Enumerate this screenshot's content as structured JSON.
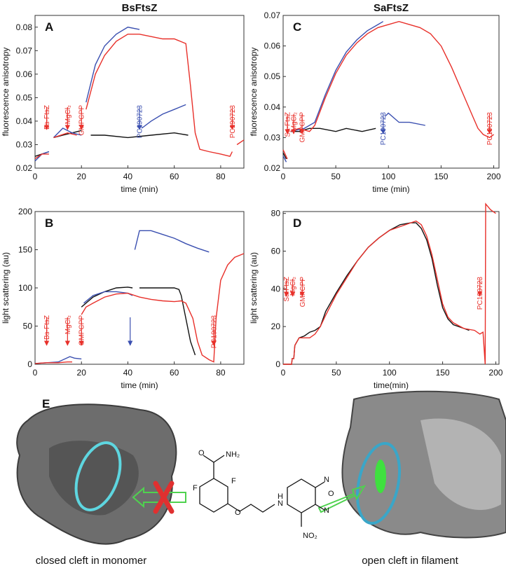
{
  "chart_data": [
    {
      "type": "line",
      "label": "A",
      "title": "BsFtsZ",
      "xlabel": "time (min)",
      "ylabel": "fluorescence anisotropy",
      "xlim": [
        0,
        90
      ],
      "xticks": [
        0,
        20,
        40,
        60,
        80
      ],
      "ylim": [
        0.02,
        0.085
      ],
      "yticks": [
        0.02,
        0.03,
        0.04,
        0.05,
        0.06,
        0.07,
        0.08
      ],
      "series": [
        {
          "color": "#111111",
          "x": [
            0,
            6,
            7,
            8,
            12,
            16,
            20,
            22,
            24,
            30,
            40,
            50,
            60,
            66
          ],
          "values": [
            0.025,
            0.027,
            null,
            0.033,
            0.034,
            0.035,
            0.036,
            null,
            0.034,
            0.034,
            0.033,
            0.034,
            0.035,
            0.034
          ]
        },
        {
          "color": "#3a4fb0",
          "x": [
            0,
            3,
            6,
            7,
            8,
            12,
            16,
            20,
            21,
            22,
            26,
            30,
            35,
            40,
            45,
            45.5,
            46,
            50,
            55,
            60,
            65
          ],
          "values": [
            0.023,
            0.026,
            0.027,
            null,
            0.033,
            0.037,
            0.035,
            0.034,
            null,
            0.048,
            0.064,
            0.072,
            0.077,
            0.08,
            0.079,
            null,
            0.037,
            0.04,
            0.043,
            0.045,
            0.047
          ]
        },
        {
          "color": "#e8302a",
          "x": [
            0,
            3,
            6,
            7,
            8,
            14,
            18,
            20,
            22,
            26,
            30,
            35,
            40,
            45,
            50,
            55,
            60,
            65,
            67,
            69,
            71,
            75,
            80,
            84,
            85,
            86,
            87,
            90
          ],
          "values": [
            0.024,
            0.026,
            0.026,
            null,
            0.033,
            0.035,
            0.034,
            null,
            0.045,
            0.06,
            0.068,
            0.074,
            0.077,
            0.077,
            0.076,
            0.075,
            0.075,
            0.073,
            0.055,
            0.035,
            0.028,
            0.027,
            0.026,
            0.025,
            0.027,
            null,
            0.03,
            0.032
          ]
        }
      ],
      "annotations": [
        {
          "text": "Bs-FtsZ",
          "x": 5,
          "color": "#e8302a"
        },
        {
          "text": "MgCl₂",
          "x": 14,
          "color": "#e8302a"
        },
        {
          "text": "GMPCPP",
          "x": 20,
          "color": "#e8302a"
        },
        {
          "text": "PC190723",
          "x": 45,
          "color": "#3a4fb0"
        },
        {
          "text": "PC190723",
          "x": 85,
          "color": "#e8302a"
        }
      ]
    },
    {
      "type": "line",
      "label": "B",
      "xlabel": "time (min)",
      "ylabel": "light scattering (au)",
      "xlim": [
        0,
        90
      ],
      "xticks": [
        0,
        20,
        40,
        60,
        80
      ],
      "ylim": [
        0,
        200
      ],
      "yticks": [
        0,
        50,
        100,
        150,
        200
      ],
      "series": [
        {
          "color": "#111111",
          "x": [
            20,
            25,
            30,
            35,
            40,
            42,
            43,
            45,
            50,
            55,
            60,
            62,
            63,
            65,
            67,
            69
          ],
          "values": [
            75,
            88,
            95,
            100,
            101,
            100,
            null,
            100,
            100,
            100,
            100,
            98,
            90,
            60,
            30,
            12
          ]
        },
        {
          "color": "#3a4fb0",
          "x": [
            0,
            10,
            15,
            17,
            20,
            20.5,
            21,
            25,
            30,
            35,
            40,
            42,
            42.5,
            43,
            45,
            50,
            55,
            60,
            65,
            70,
            75
          ],
          "values": [
            1,
            3,
            10,
            8,
            7,
            null,
            80,
            90,
            95,
            95,
            93,
            90,
            null,
            150,
            175,
            175,
            170,
            165,
            158,
            152,
            147
          ]
        },
        {
          "color": "#e8302a",
          "x": [
            0,
            5,
            10,
            14,
            16,
            18,
            20,
            22,
            25,
            30,
            35,
            40,
            45,
            50,
            55,
            60,
            63,
            65,
            68,
            70,
            72,
            75,
            77,
            78,
            80,
            83,
            86,
            90
          ],
          "values": [
            1,
            2,
            2,
            3,
            3,
            null,
            65,
            75,
            80,
            88,
            92,
            93,
            88,
            85,
            83,
            82,
            83,
            80,
            60,
            30,
            12,
            6,
            3,
            60,
            110,
            130,
            140,
            145
          ]
        }
      ],
      "annotations": [
        {
          "text": "Bs-FtsZ",
          "x": 5,
          "color": "#e8302a"
        },
        {
          "text": "MgCl₂",
          "x": 14,
          "color": "#e8302a"
        },
        {
          "text": "GMPCPP",
          "x": 20,
          "color": "#e8302a"
        },
        {
          "x": 41,
          "color": "#3a4fb0"
        },
        {
          "text": "PC190723",
          "x": 77,
          "color": "#e8302a"
        }
      ]
    },
    {
      "type": "line",
      "label": "C",
      "title": "SaFtsZ",
      "xlabel": "time (min)",
      "ylabel": "fluorescence anisotropy",
      "xlim": [
        0,
        205
      ],
      "xticks": [
        0,
        50,
        100,
        150,
        200
      ],
      "ylim": [
        0.02,
        0.07
      ],
      "yticks": [
        0.02,
        0.03,
        0.04,
        0.05,
        0.06,
        0.07
      ],
      "series": [
        {
          "color": "#111111",
          "x": [
            0,
            3,
            5,
            7,
            15,
            25,
            35,
            50,
            60,
            75,
            88
          ],
          "values": [
            0.025,
            0.023,
            null,
            0.032,
            0.032,
            0.033,
            0.033,
            0.032,
            0.033,
            0.032,
            0.033
          ]
        },
        {
          "color": "#3a4fb0",
          "x": [
            0,
            3,
            5,
            7,
            20,
            30,
            40,
            50,
            60,
            70,
            80,
            90,
            95,
            96,
            97,
            100,
            110,
            120,
            135
          ],
          "values": [
            0.024,
            0.022,
            null,
            0.032,
            0.033,
            0.035,
            0.044,
            0.052,
            0.058,
            0.062,
            0.065,
            0.067,
            0.068,
            null,
            0.037,
            0.038,
            0.035,
            0.035,
            0.034
          ]
        },
        {
          "color": "#e8302a",
          "x": [
            0,
            4,
            5,
            7,
            15,
            25,
            30,
            40,
            50,
            60,
            70,
            80,
            90,
            100,
            110,
            120,
            130,
            140,
            150,
            160,
            170,
            180,
            185,
            190,
            196,
            200
          ],
          "values": [
            0.026,
            0.023,
            null,
            0.032,
            0.033,
            0.032,
            0.034,
            0.043,
            0.051,
            0.057,
            0.061,
            0.064,
            0.066,
            0.067,
            0.068,
            0.067,
            0.066,
            0.064,
            0.06,
            0.053,
            0.045,
            0.037,
            0.033,
            0.031,
            0.03,
            0.031
          ]
        }
      ],
      "annotations": [
        {
          "text": "Sa-FtsZ",
          "x": 4,
          "color": "#e8302a"
        },
        {
          "text": "MgCl₂",
          "x": 10,
          "color": "#e8302a"
        },
        {
          "text": "GMPCPP",
          "x": 18,
          "color": "#e8302a"
        },
        {
          "text": "PC190723",
          "x": 95,
          "color": "#3a4fb0"
        },
        {
          "text": "PC190723",
          "x": 196,
          "color": "#e8302a"
        }
      ]
    },
    {
      "type": "line",
      "label": "D",
      "xlabel": "time(min)",
      "ylabel": "light scattering (au)",
      "xlim": [
        0,
        203
      ],
      "xticks": [
        0,
        50,
        100,
        150,
        200
      ],
      "ylim": [
        0,
        81
      ],
      "yticks": [
        0,
        20,
        40,
        60,
        80
      ],
      "series": [
        {
          "color": "#111111",
          "x": [
            0,
            8,
            8.5,
            10,
            11,
            15,
            20,
            25,
            30,
            35,
            40,
            50,
            60,
            70,
            80,
            90,
            100,
            110,
            120,
            125,
            130,
            135,
            140,
            145,
            150,
            155,
            160,
            170,
            175
          ],
          "values": [
            0,
            0,
            3,
            3,
            10,
            14,
            15,
            17,
            18,
            20,
            28,
            38,
            47,
            55,
            62,
            67,
            71,
            74,
            75,
            75,
            72,
            66,
            56,
            42,
            30,
            24,
            21,
            19,
            18
          ]
        },
        {
          "color": "#e8302a",
          "x": [
            0,
            8,
            8.5,
            10,
            11,
            15,
            20,
            25,
            30,
            35,
            40,
            50,
            60,
            70,
            80,
            90,
            100,
            110,
            120,
            125,
            130,
            135,
            140,
            145,
            150,
            155,
            160,
            170,
            180,
            185,
            188,
            190,
            190.5,
            195,
            200
          ],
          "values": [
            0,
            0,
            3,
            3,
            10,
            14,
            14,
            14,
            16,
            20,
            26,
            37,
            46,
            55,
            62,
            67,
            71,
            73,
            75,
            76,
            74,
            68,
            58,
            45,
            32,
            25,
            22,
            19,
            18,
            16,
            17,
            0,
            85,
            82,
            80
          ]
        }
      ],
      "annotations": [
        {
          "text": "Sa-FtsZ",
          "x": 3,
          "color": "#e8302a"
        },
        {
          "text": "MgCl₂",
          "x": 9,
          "color": "#e8302a"
        },
        {
          "text": "GMPCPP",
          "x": 18,
          "color": "#e8302a"
        },
        {
          "text": "PC190723",
          "x": 185,
          "color": "#e8302a"
        }
      ]
    }
  ],
  "panel_e": {
    "label": "E",
    "captions": [
      "closed cleft in monomer",
      "open cleft in filament"
    ],
    "structure_labels": [
      "NH₂",
      "O",
      "F",
      "F",
      "O",
      "H",
      "N",
      "N",
      "O",
      "N",
      "NO₂"
    ]
  }
}
